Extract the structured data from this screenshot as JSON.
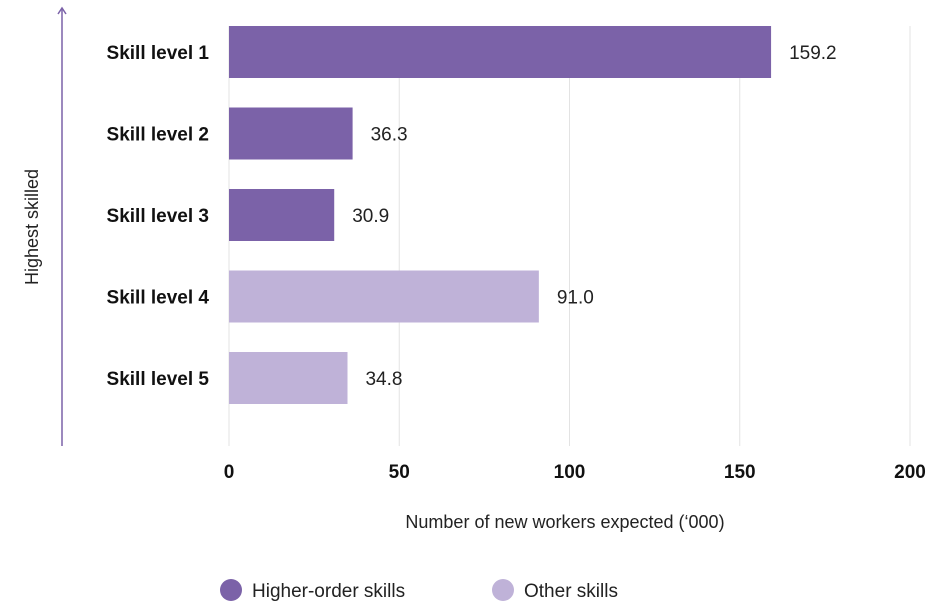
{
  "chart_data": {
    "type": "bar",
    "orientation": "horizontal",
    "categories": [
      "Skill level 1",
      "Skill level 2",
      "Skill level 3",
      "Skill level 4",
      "Skill level 5"
    ],
    "values": [
      159.2,
      36.3,
      30.9,
      91.0,
      34.8
    ],
    "value_labels": [
      "159.2",
      "36.3",
      "30.9",
      "91.0",
      "34.8"
    ],
    "groups": [
      "Higher-order skills",
      "Higher-order skills",
      "Higher-order skills",
      "Other skills",
      "Other skills"
    ],
    "xlabel": "Number of new workers expected (‘000)",
    "ylabel": "Highest skilled",
    "xlim": [
      0,
      200
    ],
    "xticks": [
      "0",
      "50",
      "100",
      "150",
      "200"
    ],
    "xtick_values": [
      0,
      50,
      100,
      150,
      200
    ],
    "grid": "vertical",
    "legend": {
      "position": "bottom",
      "entries": [
        {
          "name": "Higher-order skills",
          "color": "#7b62a8"
        },
        {
          "name": "Other skills",
          "color": "#bfb2d8"
        }
      ]
    },
    "colors": {
      "Higher-order skills": "#7b62a8",
      "Other skills": "#bfb2d8",
      "axis": "#7b62a8",
      "grid": "#e3e3e3"
    }
  }
}
